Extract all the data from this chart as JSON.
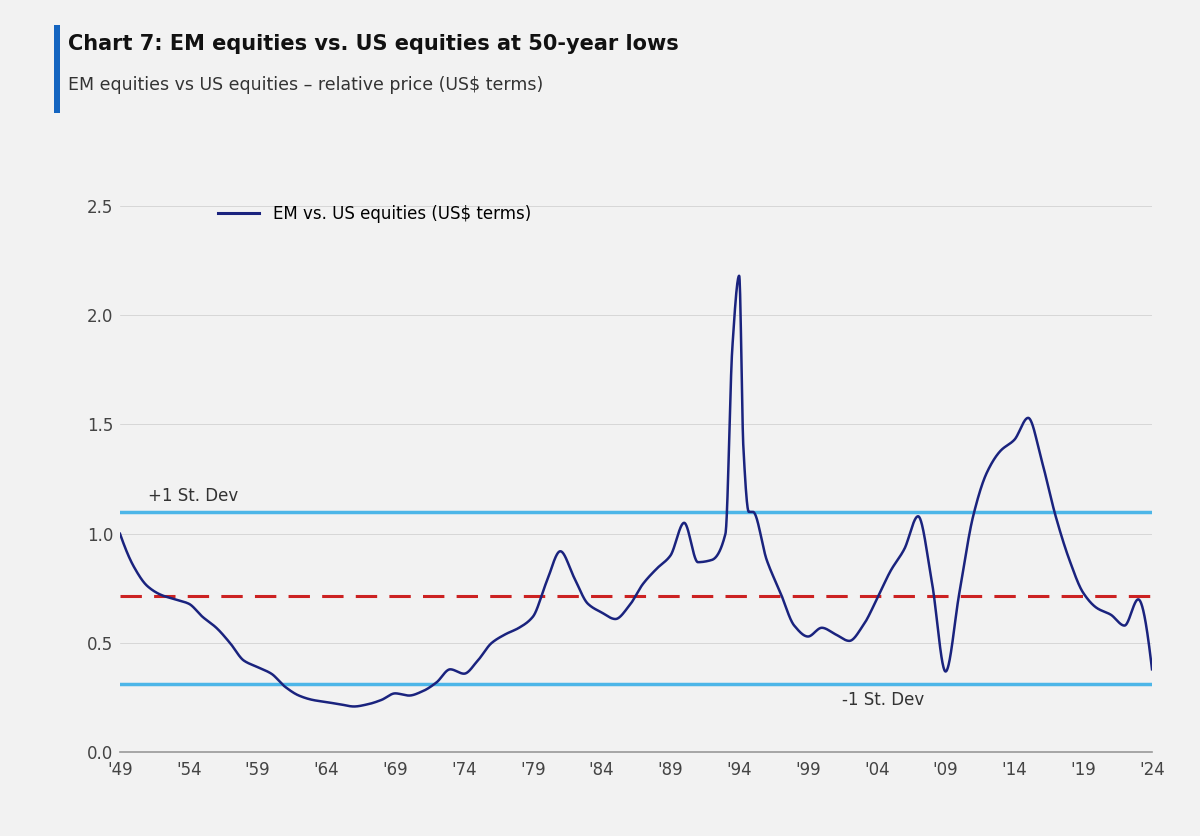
{
  "title": "Chart 7: EM equities vs. US equities at 50-year lows",
  "subtitle": "EM equities vs US equities – relative price (US$ terms)",
  "legend_label": "EM vs. US equities (US$ terms)",
  "line_color": "#1a237e",
  "upper_sd_color": "#4db6e8",
  "lower_sd_color": "#4db6e8",
  "mean_color": "#cc2222",
  "upper_sd_value": 1.1,
  "lower_sd_value": 0.315,
  "mean_value": 0.715,
  "upper_sd_label": "+1 St. Dev",
  "lower_sd_label": "-1 St. Dev",
  "background_color": "#f2f2f2",
  "plot_bg_color": "#f2f2f2",
  "ylim": [
    0.0,
    2.6
  ],
  "yticks": [
    0.0,
    0.5,
    1.0,
    1.5,
    2.0,
    2.5
  ],
  "x_start": 1949,
  "x_end": 2024,
  "xtick_years": [
    1949,
    1954,
    1959,
    1964,
    1969,
    1974,
    1979,
    1984,
    1989,
    1994,
    1999,
    2004,
    2009,
    2014,
    2019,
    2024
  ],
  "xtick_labels": [
    "'49",
    "'54",
    "'59",
    "'64",
    "'69",
    "'74",
    "'79",
    "'84",
    "'89",
    "'94",
    "'99",
    "'04",
    "'09",
    "'14",
    "'19",
    "'24"
  ],
  "accent_bar_color": "#1565c0",
  "data_x": [
    1949,
    1950,
    1951,
    1952,
    1953,
    1954,
    1955,
    1956,
    1957,
    1958,
    1959,
    1960,
    1961,
    1962,
    1963,
    1964,
    1965,
    1966,
    1967,
    1968,
    1969,
    1970,
    1971,
    1972,
    1973,
    1974,
    1975,
    1976,
    1977,
    1978,
    1979,
    1980,
    1981,
    1982,
    1983,
    1984,
    1985,
    1986,
    1987,
    1988,
    1989,
    1990,
    1991,
    1992,
    1993,
    1994,
    1995,
    1996,
    1997,
    1998,
    1999,
    2000,
    2001,
    2002,
    2003,
    2004,
    2005,
    2006,
    2007,
    2008,
    2009,
    2010,
    2011,
    2012,
    2013,
    2014,
    2015,
    2016,
    2017,
    2018,
    2019,
    2020,
    2021,
    2022,
    2023,
    2024
  ],
  "data_y": [
    1.0,
    0.85,
    0.76,
    0.72,
    0.7,
    0.68,
    0.62,
    0.57,
    0.5,
    0.42,
    0.39,
    0.36,
    0.3,
    0.26,
    0.24,
    0.23,
    0.22,
    0.21,
    0.22,
    0.24,
    0.27,
    0.26,
    0.28,
    0.32,
    0.38,
    0.36,
    0.42,
    0.5,
    0.54,
    0.57,
    0.62,
    0.78,
    0.92,
    0.8,
    0.68,
    0.64,
    0.61,
    0.67,
    0.77,
    0.84,
    0.9,
    1.05,
    0.87,
    0.88,
    1.0,
    1.9,
    1.1,
    0.88,
    0.73,
    0.58,
    0.53,
    0.57,
    0.54,
    0.51,
    0.58,
    0.7,
    0.83,
    0.93,
    1.08,
    0.78,
    0.37,
    0.73,
    1.08,
    1.28,
    1.38,
    1.43,
    1.53,
    1.33,
    1.08,
    0.88,
    0.73,
    0.66,
    0.63,
    0.58,
    0.7,
    0.38
  ]
}
